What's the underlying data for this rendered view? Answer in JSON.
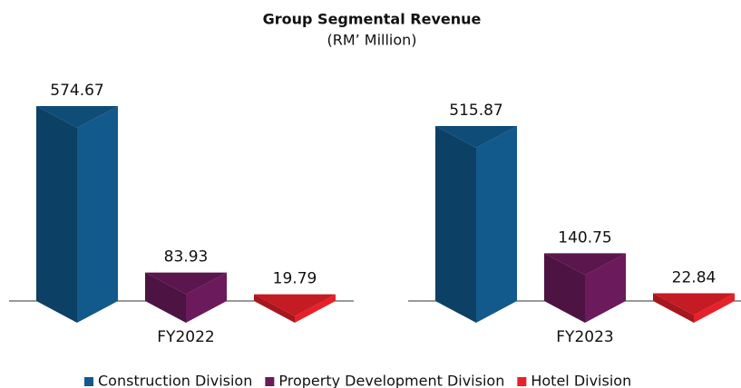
{
  "chart_data": {
    "type": "bar3d",
    "title": "Group Segmental Revenue",
    "subtitle": "(RM’ Million)",
    "categories": [
      "FY2022",
      "FY2023"
    ],
    "series": [
      {
        "name": "Construction Division",
        "color": "#12598c",
        "values": [
          574.67,
          515.87
        ]
      },
      {
        "name": "Property Development Division",
        "color": "#6b1a5c",
        "values": [
          83.93,
          140.75
        ]
      },
      {
        "name": "Hotel Division",
        "color": "#e8202a",
        "values": [
          19.79,
          22.84
        ]
      }
    ],
    "legend": "bottom"
  }
}
